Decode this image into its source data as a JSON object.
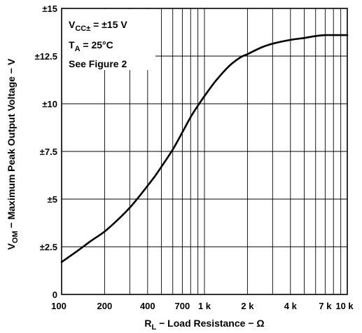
{
  "chart_data": {
    "type": "line",
    "xscale": "log",
    "xlim": [
      100,
      10000
    ],
    "ylim": [
      0,
      15
    ],
    "grid": true,
    "xticks": [
      {
        "value": 100,
        "label": "100"
      },
      {
        "value": 200,
        "label": "200"
      },
      {
        "value": 400,
        "label": "400"
      },
      {
        "value": 700,
        "label": "700"
      },
      {
        "value": 1000,
        "label": "1 k"
      },
      {
        "value": 2000,
        "label": "2 k"
      },
      {
        "value": 4000,
        "label": "4 k"
      },
      {
        "value": 7000,
        "label": "7 k"
      },
      {
        "value": 10000,
        "label": "10 k"
      }
    ],
    "xminor": [
      300,
      500,
      600,
      800,
      900,
      3000,
      5000,
      6000,
      8000,
      9000
    ],
    "yticks": [
      {
        "value": 0,
        "label": "0"
      },
      {
        "value": 2.5,
        "label": "±2.5"
      },
      {
        "value": 5,
        "label": "±5"
      },
      {
        "value": 7.5,
        "label": "±7.5"
      },
      {
        "value": 10,
        "label": "±10"
      },
      {
        "value": 12.5,
        "label": "±12.5"
      },
      {
        "value": 15,
        "label": "±15"
      }
    ],
    "xlabel": {
      "main": "R",
      "sub": "L",
      "rest": " − Load Resistance − Ω"
    },
    "ylabel": {
      "main": "V",
      "sub": "OM",
      "rest": " − Maximum Peak Output Voltage − V"
    },
    "annotations": [
      {
        "main": "V",
        "sub": "CC±",
        "rest": " = ±15 V"
      },
      {
        "main": "T",
        "sub": "A",
        "rest": " = 25°C"
      },
      {
        "main": "See Figure 2",
        "sub": "",
        "rest": ""
      }
    ],
    "series": [
      {
        "x": [
          100,
          130,
          160,
          200,
          250,
          300,
          350,
          400,
          450,
          500,
          600,
          700,
          800,
          900,
          1000,
          1200,
          1500,
          1800,
          2000,
          2500,
          3000,
          4000,
          5000,
          6000,
          7000,
          8000,
          9000,
          10000
        ],
        "y": [
          1.7,
          2.3,
          2.8,
          3.3,
          3.95,
          4.55,
          5.15,
          5.7,
          6.2,
          6.7,
          7.6,
          8.5,
          9.3,
          9.9,
          10.4,
          11.2,
          12.0,
          12.45,
          12.6,
          12.95,
          13.15,
          13.35,
          13.45,
          13.55,
          13.6,
          13.6,
          13.6,
          13.6
        ]
      }
    ]
  }
}
